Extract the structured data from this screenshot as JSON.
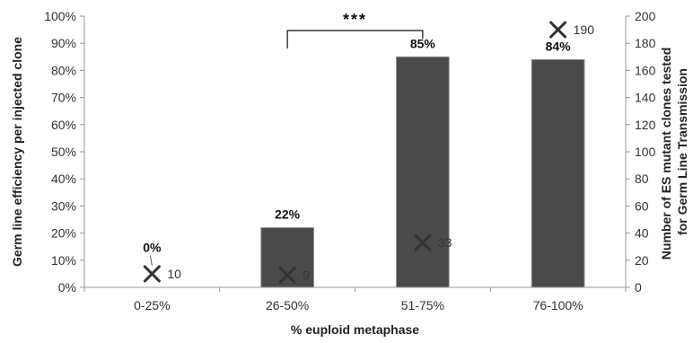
{
  "chart_data": {
    "type": "bar",
    "categories": [
      "0-25%",
      "26-50%",
      "51-75%",
      "76-100%"
    ],
    "series": [
      {
        "axis": "left",
        "mark": "bar",
        "values": [
          0,
          22,
          85,
          84
        ],
        "data_labels": [
          "0%",
          "22%",
          "85%",
          "84%"
        ]
      },
      {
        "axis": "right",
        "mark": "x-marker",
        "values": [
          10,
          9,
          33,
          190
        ],
        "data_labels": [
          "10",
          "9",
          "33",
          "190"
        ]
      }
    ],
    "xlabel": "% euploid metaphase",
    "ylabel": "Germ line efficiency per injected clone",
    "y2label_lines": [
      "Number of ES mutant clones tested",
      "for Germ Line Transmission"
    ],
    "ylim": [
      0,
      100
    ],
    "y2lim": [
      0,
      200
    ],
    "yticks": [
      "0%",
      "10%",
      "20%",
      "30%",
      "40%",
      "50%",
      "60%",
      "70%",
      "80%",
      "90%",
      "100%"
    ],
    "y2ticks": [
      "0",
      "20",
      "40",
      "60",
      "80",
      "100",
      "120",
      "140",
      "160",
      "180",
      "200"
    ],
    "grid": false,
    "significance": {
      "from": "26-50%",
      "to": "51-75%",
      "label": "***"
    },
    "colors": {
      "bar": "#4a4a4a",
      "marker": "#333333",
      "axis": "#999999"
    }
  }
}
